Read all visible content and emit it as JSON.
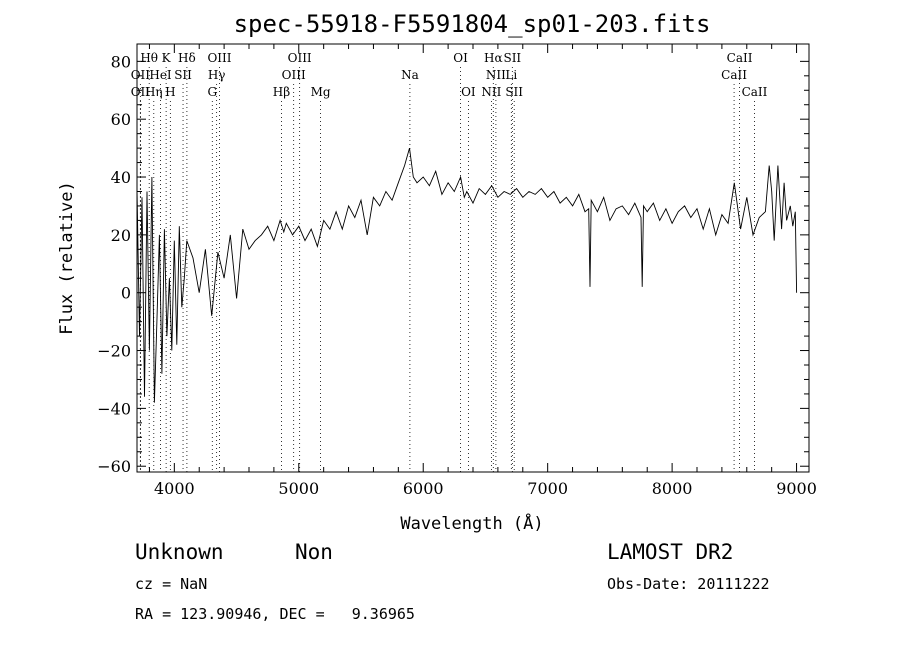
{
  "chart_data": {
    "type": "line",
    "title": "spec-55918-F5591804_sp01-203.fits",
    "xlabel": "Wavelength (Å)",
    "ylabel": "Flux (relative)",
    "xlim": [
      3700,
      9100
    ],
    "ylim": [
      -62,
      86
    ],
    "x_ticks": [
      4000,
      5000,
      6000,
      7000,
      8000,
      9000
    ],
    "y_ticks": [
      -60,
      -40,
      -20,
      0,
      20,
      40,
      60,
      80
    ],
    "grid": false,
    "legend": "none",
    "series": [
      {
        "color": "#000000",
        "x": [
          3700,
          3720,
          3740,
          3760,
          3780,
          3800,
          3820,
          3840,
          3860,
          3880,
          3900,
          3920,
          3940,
          3960,
          3980,
          4000,
          4020,
          4040,
          4060,
          4080,
          4100,
          4150,
          4200,
          4250,
          4300,
          4350,
          4400,
          4450,
          4500,
          4550,
          4600,
          4650,
          4700,
          4750,
          4800,
          4850,
          4880,
          4900,
          4950,
          5000,
          5050,
          5100,
          5150,
          5200,
          5250,
          5300,
          5350,
          5400,
          5450,
          5500,
          5550,
          5600,
          5650,
          5700,
          5750,
          5800,
          5850,
          5890,
          5920,
          5950,
          6000,
          6050,
          6100,
          6150,
          6200,
          6250,
          6300,
          6330,
          6350,
          6400,
          6450,
          6500,
          6550,
          6600,
          6650,
          6700,
          6750,
          6800,
          6850,
          6900,
          6950,
          7000,
          7050,
          7100,
          7150,
          7200,
          7250,
          7300,
          7330,
          7340,
          7350,
          7400,
          7450,
          7500,
          7550,
          7600,
          7650,
          7700,
          7750,
          7760,
          7770,
          7800,
          7850,
          7900,
          7950,
          8000,
          8050,
          8100,
          8150,
          8200,
          8250,
          8300,
          8350,
          8400,
          8450,
          8500,
          8550,
          8600,
          8650,
          8700,
          8750,
          8780,
          8800,
          8820,
          8850,
          8880,
          8900,
          8920,
          8950,
          8970,
          8990,
          9000
        ],
        "y": [
          36,
          -15,
          33,
          -36,
          35,
          -20,
          40,
          -38,
          -10,
          20,
          -28,
          22,
          -15,
          5,
          -20,
          18,
          -18,
          23,
          -5,
          5,
          18,
          12,
          0,
          15,
          -8,
          14,
          5,
          20,
          -2,
          22,
          15,
          18,
          20,
          23,
          18,
          25,
          21,
          24,
          20,
          23,
          18,
          22,
          16,
          25,
          22,
          28,
          22,
          30,
          26,
          32,
          20,
          33,
          30,
          35,
          32,
          38,
          44,
          50,
          40,
          38,
          40,
          37,
          42,
          34,
          38,
          35,
          40,
          33,
          35,
          31,
          36,
          34,
          37,
          33,
          35,
          34,
          36,
          33,
          35,
          34,
          36,
          33,
          35,
          31,
          33,
          30,
          34,
          28,
          29,
          2,
          32,
          28,
          33,
          25,
          29,
          30,
          27,
          31,
          26,
          2,
          30,
          28,
          31,
          25,
          29,
          24,
          28,
          30,
          26,
          29,
          22,
          29,
          20,
          27,
          24,
          38,
          22,
          33,
          20,
          26,
          28,
          44,
          35,
          18,
          44,
          22,
          38,
          25,
          30,
          23,
          28,
          0
        ]
      }
    ],
    "spectral_lines": [
      {
        "name": "Hθ",
        "x": 3798,
        "row": 0
      },
      {
        "name": "OII",
        "x": 3727,
        "row": 1
      },
      {
        "name": "OII",
        "x": 3727,
        "row": 2
      },
      {
        "name": "K",
        "x": 3934,
        "row": 0
      },
      {
        "name": "HeI",
        "x": 3889,
        "row": 1
      },
      {
        "name": "SII",
        "x": 4070,
        "row": 1
      },
      {
        "name": "Hη",
        "x": 3835,
        "row": 2
      },
      {
        "name": "H",
        "x": 3968,
        "row": 2
      },
      {
        "name": "Hδ",
        "x": 4101,
        "row": 0
      },
      {
        "name": "OIII",
        "x": 4363,
        "row": 0
      },
      {
        "name": "Hγ",
        "x": 4340,
        "row": 1
      },
      {
        "name": "G",
        "x": 4305,
        "row": 2
      },
      {
        "name": "OIII",
        "x": 5007,
        "row": 0
      },
      {
        "name": "OIII",
        "x": 4959,
        "row": 1
      },
      {
        "name": "Hβ",
        "x": 4861,
        "row": 2
      },
      {
        "name": "Mg",
        "x": 5175,
        "row": 2
      },
      {
        "name": "Na",
        "x": 5893,
        "row": 1
      },
      {
        "name": "OI",
        "x": 6300,
        "row": 0
      },
      {
        "name": "OI",
        "x": 6363,
        "row": 2
      },
      {
        "name": "Hα",
        "x": 6563,
        "row": 0
      },
      {
        "name": "SII",
        "x": 6716,
        "row": 0
      },
      {
        "name": "NII",
        "x": 6584,
        "row": 1
      },
      {
        "name": "Li",
        "x": 6708,
        "row": 1
      },
      {
        "name": "NII",
        "x": 6548,
        "row": 2
      },
      {
        "name": "SII",
        "x": 6731,
        "row": 2
      },
      {
        "name": "CaII",
        "x": 8542,
        "row": 0
      },
      {
        "name": "CaII",
        "x": 8498,
        "row": 1
      },
      {
        "name": "CaII",
        "x": 8662,
        "row": 2
      }
    ]
  },
  "footer": {
    "class_label": "Unknown",
    "subclass_label": "Non",
    "survey": "LAMOST DR2",
    "cz": "cz = NaN",
    "obs_date": "Obs-Date: 20111222",
    "coords": "RA = 123.90946, DEC =   9.36965"
  }
}
